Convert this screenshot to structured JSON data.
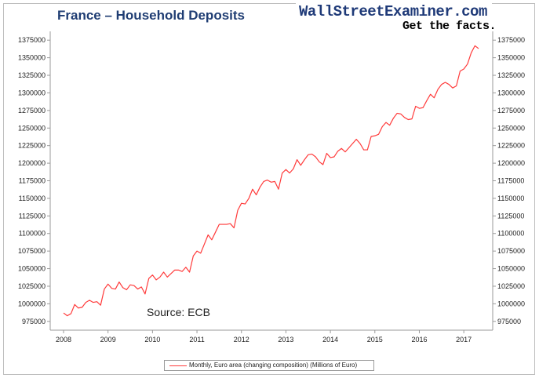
{
  "header": {
    "title": "France – Household Deposits",
    "brand": "WallStreetExaminer.com",
    "tagline": "Get the facts."
  },
  "annotation": {
    "source": "Source: ECB"
  },
  "colors": {
    "series": "#ff3b3b",
    "title": "#1f3d73",
    "axis": "#9a9a9a"
  },
  "chart_data": {
    "type": "line",
    "title": "France – Household Deposits",
    "xlabel": "",
    "ylabel": "",
    "xlim": [
      2007.7,
      2017.65
    ],
    "ylim": [
      962500,
      1387500
    ],
    "x_ticks": [
      "2008",
      "2009",
      "2010",
      "2011",
      "2012",
      "2013",
      "2014",
      "2015",
      "2016",
      "2017"
    ],
    "y_ticks": [
      975000,
      1000000,
      1025000,
      1050000,
      1075000,
      1100000,
      1125000,
      1150000,
      1175000,
      1200000,
      1225000,
      1250000,
      1275000,
      1300000,
      1325000,
      1350000,
      1375000
    ],
    "y_tick_labels": [
      "975000",
      "1000000",
      "1025000",
      "1050000",
      "1075000",
      "1100000",
      "1125000",
      "1150000",
      "1175000",
      "1200000",
      "1225000",
      "1250000",
      "1275000",
      "1300000",
      "1325000",
      "1350000",
      "1375000"
    ],
    "grid": false,
    "legend": "bottom",
    "series": [
      {
        "name": "Monthly, Euro area (changing composition) (Millions of Euro)",
        "x": [
          2008.0,
          2008.083,
          2008.167,
          2008.25,
          2008.333,
          2008.417,
          2008.5,
          2008.583,
          2008.667,
          2008.75,
          2008.833,
          2008.917,
          2009.0,
          2009.083,
          2009.167,
          2009.25,
          2009.333,
          2009.417,
          2009.5,
          2009.583,
          2009.667,
          2009.75,
          2009.833,
          2009.917,
          2010.0,
          2010.083,
          2010.167,
          2010.25,
          2010.333,
          2010.417,
          2010.5,
          2010.583,
          2010.667,
          2010.75,
          2010.833,
          2010.917,
          2011.0,
          2011.083,
          2011.167,
          2011.25,
          2011.333,
          2011.417,
          2011.5,
          2011.583,
          2011.667,
          2011.75,
          2011.833,
          2011.917,
          2012.0,
          2012.083,
          2012.167,
          2012.25,
          2012.333,
          2012.417,
          2012.5,
          2012.583,
          2012.667,
          2012.75,
          2012.833,
          2012.917,
          2013.0,
          2013.083,
          2013.167,
          2013.25,
          2013.333,
          2013.417,
          2013.5,
          2013.583,
          2013.667,
          2013.75,
          2013.833,
          2013.917,
          2014.0,
          2014.083,
          2014.167,
          2014.25,
          2014.333,
          2014.417,
          2014.5,
          2014.583,
          2014.667,
          2014.75,
          2014.833,
          2014.917,
          2015.0,
          2015.083,
          2015.167,
          2015.25,
          2015.333,
          2015.417,
          2015.5,
          2015.583,
          2015.667,
          2015.75,
          2015.833,
          2015.917,
          2016.0,
          2016.083,
          2016.167,
          2016.25,
          2016.333,
          2016.417,
          2016.5,
          2016.583,
          2016.667,
          2016.75,
          2016.833,
          2016.917,
          2017.0,
          2017.083,
          2017.167,
          2017.25,
          2017.333
        ],
        "values": [
          987000,
          983000,
          986000,
          999000,
          994000,
          995000,
          1002000,
          1005000,
          1002000,
          1003000,
          998000,
          1021000,
          1028000,
          1022000,
          1021000,
          1031000,
          1023000,
          1020000,
          1027000,
          1026000,
          1021000,
          1024000,
          1014000,
          1036000,
          1041000,
          1034000,
          1038000,
          1045000,
          1038000,
          1043000,
          1048000,
          1048000,
          1046000,
          1052000,
          1045000,
          1068000,
          1075000,
          1072000,
          1085000,
          1098000,
          1091000,
          1102000,
          1113000,
          1113000,
          1113000,
          1114000,
          1108000,
          1133000,
          1143000,
          1142000,
          1150000,
          1163000,
          1155000,
          1166000,
          1174000,
          1176000,
          1173000,
          1174000,
          1163000,
          1186000,
          1191000,
          1186000,
          1192000,
          1205000,
          1197000,
          1205000,
          1212000,
          1213000,
          1209000,
          1202000,
          1198000,
          1214000,
          1208000,
          1209000,
          1217000,
          1221000,
          1216000,
          1222000,
          1228000,
          1234000,
          1228000,
          1219000,
          1219000,
          1238000,
          1239000,
          1241000,
          1252000,
          1258000,
          1254000,
          1264000,
          1271000,
          1270000,
          1265000,
          1262000,
          1263000,
          1281000,
          1278000,
          1279000,
          1289000,
          1298000,
          1293000,
          1305000,
          1312000,
          1315000,
          1312000,
          1307000,
          1310000,
          1331000,
          1334000,
          1341000,
          1357000,
          1367000,
          1363000
        ]
      }
    ]
  }
}
